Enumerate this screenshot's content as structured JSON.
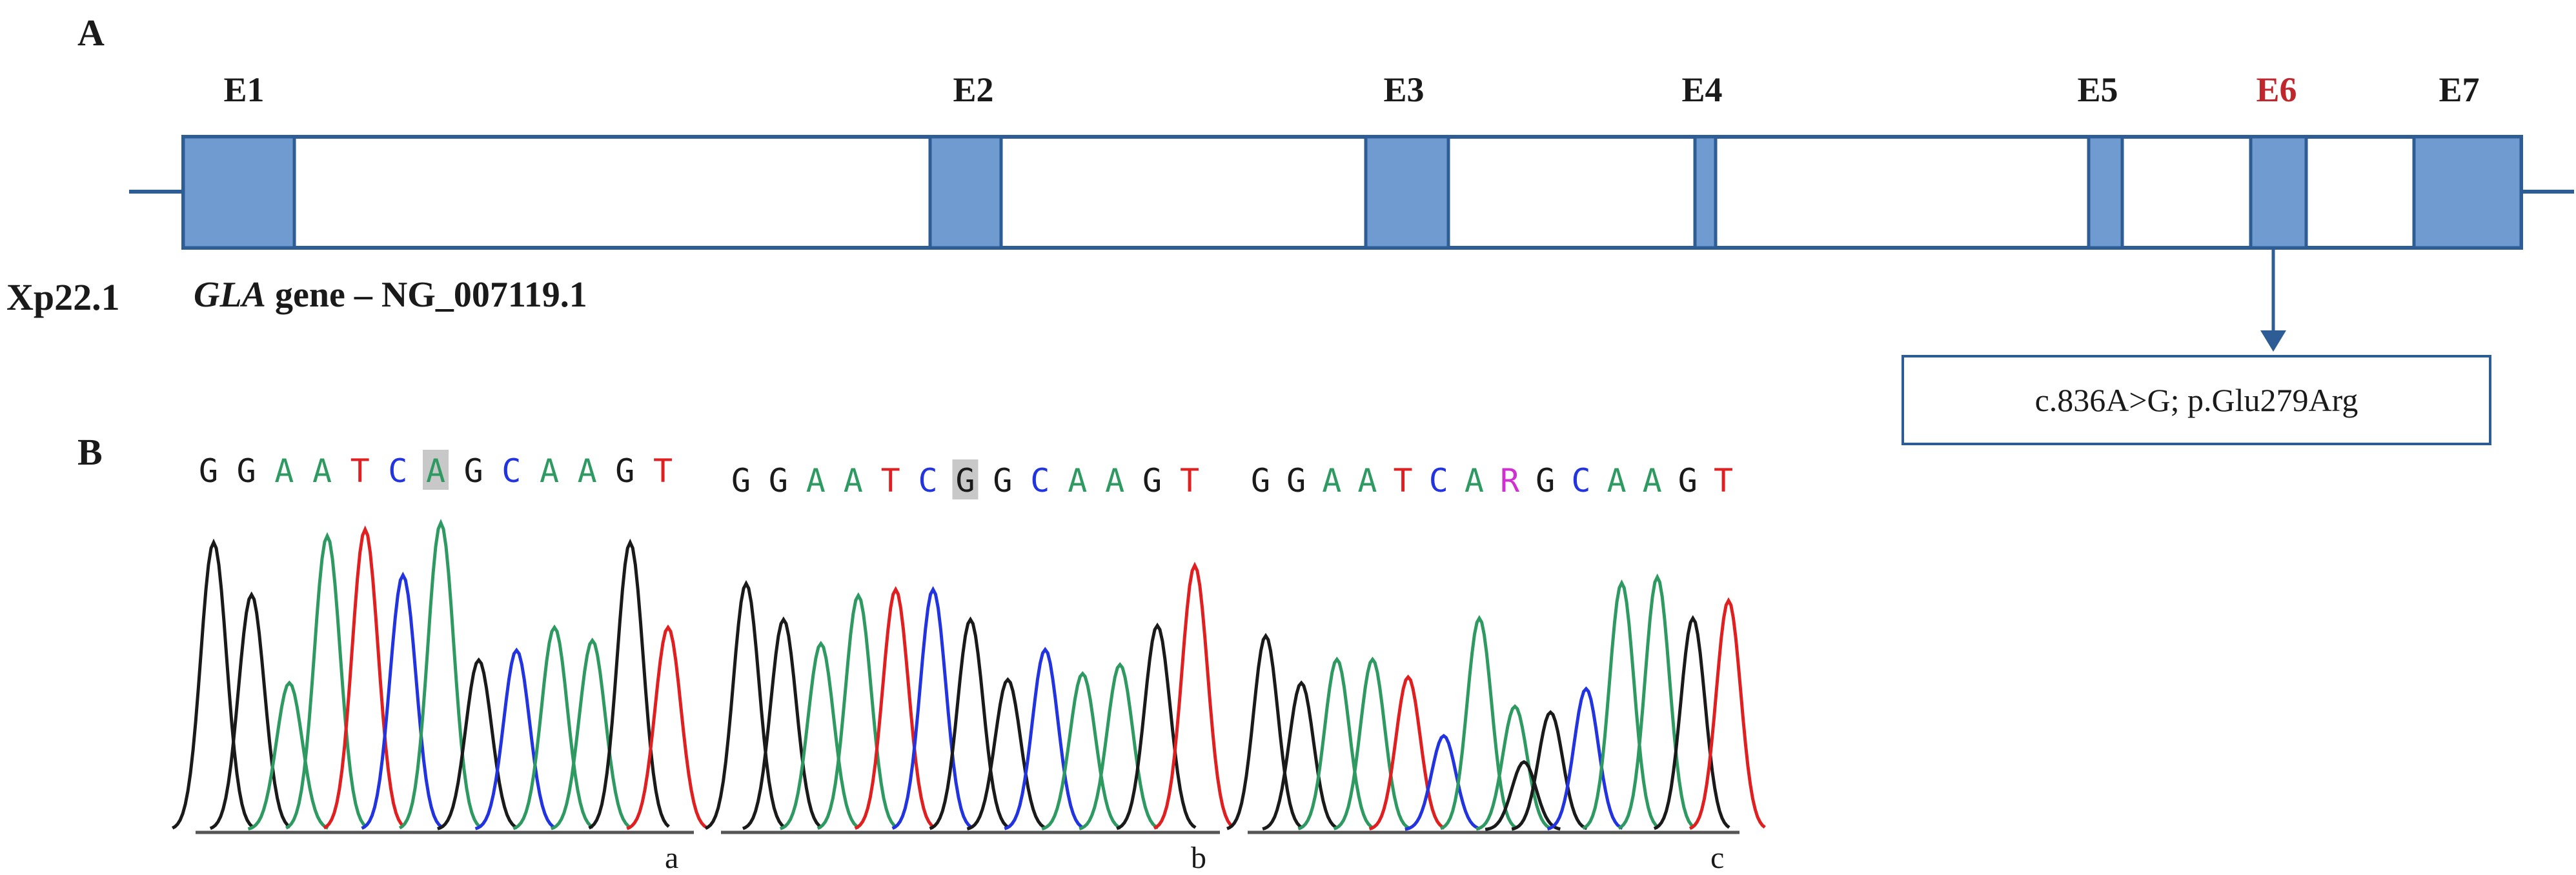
{
  "panel_labels": {
    "a": "A",
    "b": "B"
  },
  "gene": {
    "locus": "Xp22.1",
    "gene_name": "GLA",
    "gene_suffix": " gene – NG_007119.1",
    "exons": [
      {
        "label": "E1",
        "highlight": false
      },
      {
        "label": "E2",
        "highlight": false
      },
      {
        "label": "E3",
        "highlight": false
      },
      {
        "label": "E4",
        "highlight": false
      },
      {
        "label": "E5",
        "highlight": false
      },
      {
        "label": "E6",
        "highlight": true
      },
      {
        "label": "E7",
        "highlight": false
      }
    ],
    "mutation": "c.836A>G; p.Glu279Arg"
  },
  "chromatograms": [
    {
      "label": "a",
      "bases": [
        "G",
        "G",
        "A",
        "A",
        "T",
        "C",
        "A",
        "G",
        "C",
        "A",
        "A",
        "G",
        "T"
      ],
      "highlight_index": 6
    },
    {
      "label": "b",
      "bases": [
        "G",
        "G",
        "A",
        "A",
        "T",
        "C",
        "G",
        "G",
        "C",
        "A",
        "A",
        "G",
        "T"
      ],
      "highlight_index": 6
    },
    {
      "label": "c",
      "bases": [
        "G",
        "G",
        "A",
        "A",
        "T",
        "C",
        "A",
        "R",
        "G",
        "C",
        "A",
        "A",
        "G",
        "T"
      ],
      "highlight_index": -1
    }
  ],
  "colors": {
    "exon_fill": "#6f9bd1",
    "gene_line": "#2e5d95",
    "exon_highlight_label": "#c0272d",
    "label_text": "#1a1a1a",
    "base_G": "#1a1a1a",
    "base_A": "#2e9a62",
    "base_T": "#e02020",
    "base_C": "#2233e0",
    "base_R": "#d030d0",
    "highlight_box": "#c8c8c8"
  }
}
